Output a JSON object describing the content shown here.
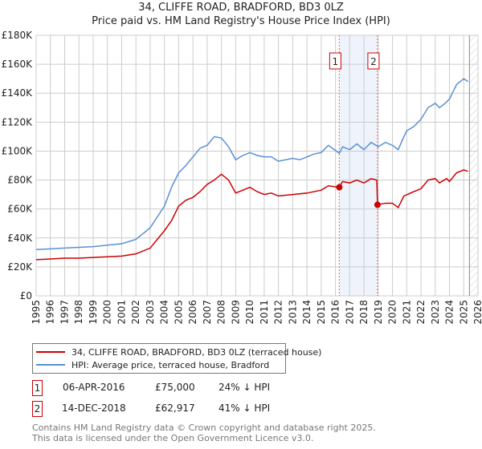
{
  "chart_data": {
    "type": "line",
    "title": "34, CLIFFE ROAD, BRADFORD, BD3 0LZ",
    "subtitle": "Price paid vs. HM Land Registry's House Price Index (HPI)",
    "xlim": [
      1995,
      2026
    ],
    "ylim": [
      0,
      180000
    ],
    "yticks": [
      0,
      20000,
      40000,
      60000,
      80000,
      100000,
      120000,
      140000,
      160000,
      180000
    ],
    "ytick_labels": [
      "£0",
      "£20K",
      "£40K",
      "£60K",
      "£80K",
      "£100K",
      "£120K",
      "£140K",
      "£160K",
      "£180K"
    ],
    "xticks": [
      1995,
      1996,
      1997,
      1998,
      1999,
      2000,
      2001,
      2002,
      2003,
      2004,
      2005,
      2006,
      2007,
      2008,
      2009,
      2010,
      2011,
      2012,
      2013,
      2014,
      2015,
      2016,
      2017,
      2018,
      2019,
      2020,
      2021,
      2022,
      2023,
      2024,
      2025,
      2026
    ],
    "grid": true,
    "series": [
      {
        "name": "34, CLIFFE ROAD, BRADFORD, BD3 0LZ (terraced house)",
        "color": "#cc0000",
        "x": [
          1995,
          1996,
          1997,
          1998,
          1999,
          2000,
          2001,
          2002,
          2003,
          2004,
          2004.5,
          2005,
          2005.5,
          2006,
          2006.5,
          2007,
          2007.5,
          2008,
          2008.5,
          2009,
          2009.5,
          2010,
          2010.5,
          2011,
          2011.5,
          2012,
          2013,
          2014,
          2015,
          2015.5,
          2016.27,
          2016.5,
          2017,
          2017.5,
          2018,
          2018.5,
          2018.9,
          2018.95,
          2019.5,
          2020,
          2020.4,
          2020.8,
          2021.5,
          2022,
          2022.5,
          2023,
          2023.3,
          2023.8,
          2024,
          2024.5,
          2025,
          2025.3
        ],
        "y": [
          25000,
          25500,
          26000,
          26000,
          26500,
          27000,
          27500,
          29000,
          33000,
          45000,
          52000,
          62000,
          66000,
          68000,
          72000,
          77000,
          80000,
          84000,
          80000,
          71000,
          73000,
          75000,
          72000,
          70000,
          71000,
          69000,
          70000,
          71000,
          73000,
          76000,
          75000,
          79000,
          78000,
          80000,
          78000,
          81000,
          80000,
          62917,
          64000,
          64000,
          61000,
          69000,
          72000,
          74000,
          80000,
          81000,
          78000,
          81000,
          79000,
          85000,
          87000,
          86000
        ]
      },
      {
        "name": "HPI: Average price, terraced house, Bradford",
        "color": "#5b8fd4",
        "x": [
          1995,
          1996,
          1997,
          1998,
          1999,
          2000,
          2001,
          2002,
          2003,
          2004,
          2004.5,
          2005,
          2005.5,
          2006,
          2006.5,
          2007,
          2007.5,
          2008,
          2008.5,
          2009,
          2009.5,
          2010,
          2010.5,
          2011,
          2011.5,
          2012,
          2013,
          2013.5,
          2014,
          2014.5,
          2015,
          2015.5,
          2016.27,
          2016.5,
          2017,
          2017.5,
          2018,
          2018.5,
          2019,
          2019.5,
          2020,
          2020.4,
          2020.8,
          2021,
          2021.5,
          2022,
          2022.5,
          2023,
          2023.3,
          2023.7,
          2024,
          2024.5,
          2025,
          2025.3
        ],
        "y": [
          32000,
          32500,
          33000,
          33500,
          34000,
          35000,
          36000,
          39000,
          47000,
          62000,
          75000,
          85000,
          90000,
          96000,
          102000,
          104000,
          110000,
          109000,
          103000,
          94000,
          97000,
          99000,
          97000,
          96000,
          96000,
          93000,
          95000,
          94000,
          96000,
          98000,
          99000,
          104000,
          98500,
          103000,
          101000,
          105000,
          101000,
          106000,
          103000,
          106000,
          104000,
          101000,
          110000,
          114000,
          117000,
          122000,
          130000,
          133000,
          130000,
          133000,
          136000,
          146000,
          150000,
          148000
        ]
      }
    ],
    "annotations": [
      {
        "label": "1",
        "x": 2016.27,
        "y": 75000
      },
      {
        "label": "2",
        "x": 2018.95,
        "y": 62917
      }
    ],
    "shaded_range": [
      2016.27,
      2018.95
    ],
    "forecast_hatch_from": 2025.4
  },
  "legend": {
    "items": [
      {
        "label": "34, CLIFFE ROAD, BRADFORD, BD3 0LZ (terraced house)",
        "color": "#cc0000"
      },
      {
        "label": "HPI: Average price, terraced house, Bradford",
        "color": "#5b8fd4"
      }
    ]
  },
  "transactions": [
    {
      "num": "1",
      "date": "06-APR-2016",
      "price": "£75,000",
      "hpi": "24% ↓ HPI"
    },
    {
      "num": "2",
      "date": "14-DEC-2018",
      "price": "£62,917",
      "hpi": "41% ↓ HPI"
    }
  ],
  "footer": {
    "line1": "Contains HM Land Registry data © Crown copyright and database right 2025.",
    "line2": "This data is licensed under the Open Government Licence v3.0."
  }
}
